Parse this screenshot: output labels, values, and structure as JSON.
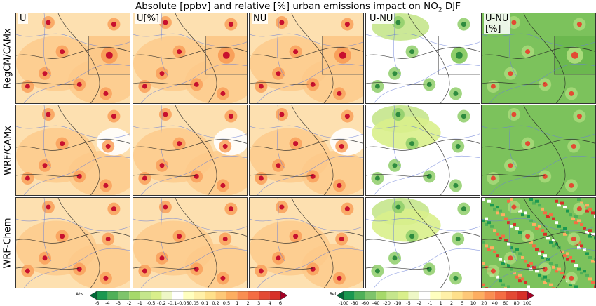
{
  "title_main": "Absolute [ppbv] and relative [%] urban emissions impact on NO",
  "title_sub": "2",
  "title_tail": " DJF",
  "columns": [
    "U",
    "U[%]",
    "NU",
    "U-NU",
    "U-NU\n[%]"
  ],
  "rows": [
    "RegCM/CAMx",
    "WRF/CAMx",
    "WRF-Chem"
  ],
  "colorbar_abs": {
    "label": "Abs",
    "ticks": [
      "-6",
      "-4",
      "-3",
      "-2",
      "-1",
      "-0.5",
      "-0.2",
      "-0.1",
      "-0.05",
      "0.05",
      "0.1",
      "0.2",
      "0.5",
      "1",
      "2",
      "3",
      "4",
      "6"
    ],
    "colors": [
      "#006837",
      "#1a9850",
      "#4fb058",
      "#7ec46b",
      "#a6d96a",
      "#c5e68c",
      "#d9ef8b",
      "#eef7c6",
      "#ffffff",
      "#ffffbf",
      "#fff0a8",
      "#fee08b",
      "#fdc878",
      "#fdae61",
      "#f98e52",
      "#f46d43",
      "#e34a33",
      "#d73027",
      "#a50026"
    ]
  },
  "colorbar_rel": {
    "label": "Rel",
    "ticks": [
      "-100",
      "-80",
      "-60",
      "-40",
      "-20",
      "-10",
      "-5",
      "-2",
      "-1",
      "1",
      "2",
      "5",
      "10",
      "20",
      "40",
      "60",
      "80",
      "100"
    ],
    "colors": [
      "#006837",
      "#1a9850",
      "#4fb058",
      "#7ec46b",
      "#a6d96a",
      "#c5e68c",
      "#d9ef8b",
      "#eef7c6",
      "#ffffff",
      "#ffffbf",
      "#fff0a8",
      "#fee08b",
      "#fdc878",
      "#fdae61",
      "#f98e52",
      "#f46d43",
      "#e34a33",
      "#d73027",
      "#a50026"
    ]
  },
  "panel_styles": {
    "abs_base": "#fde0b0",
    "abs_hot": "#f9a05a",
    "abs_core": "#c8102e",
    "diff_base": "#ffffff",
    "diff_hot": "#8fce6a",
    "diff_core": "#2e8b3e",
    "rel_base": "#7cc25c",
    "rel_hot": "#a9db7a",
    "rel_core": "#e34a33"
  }
}
